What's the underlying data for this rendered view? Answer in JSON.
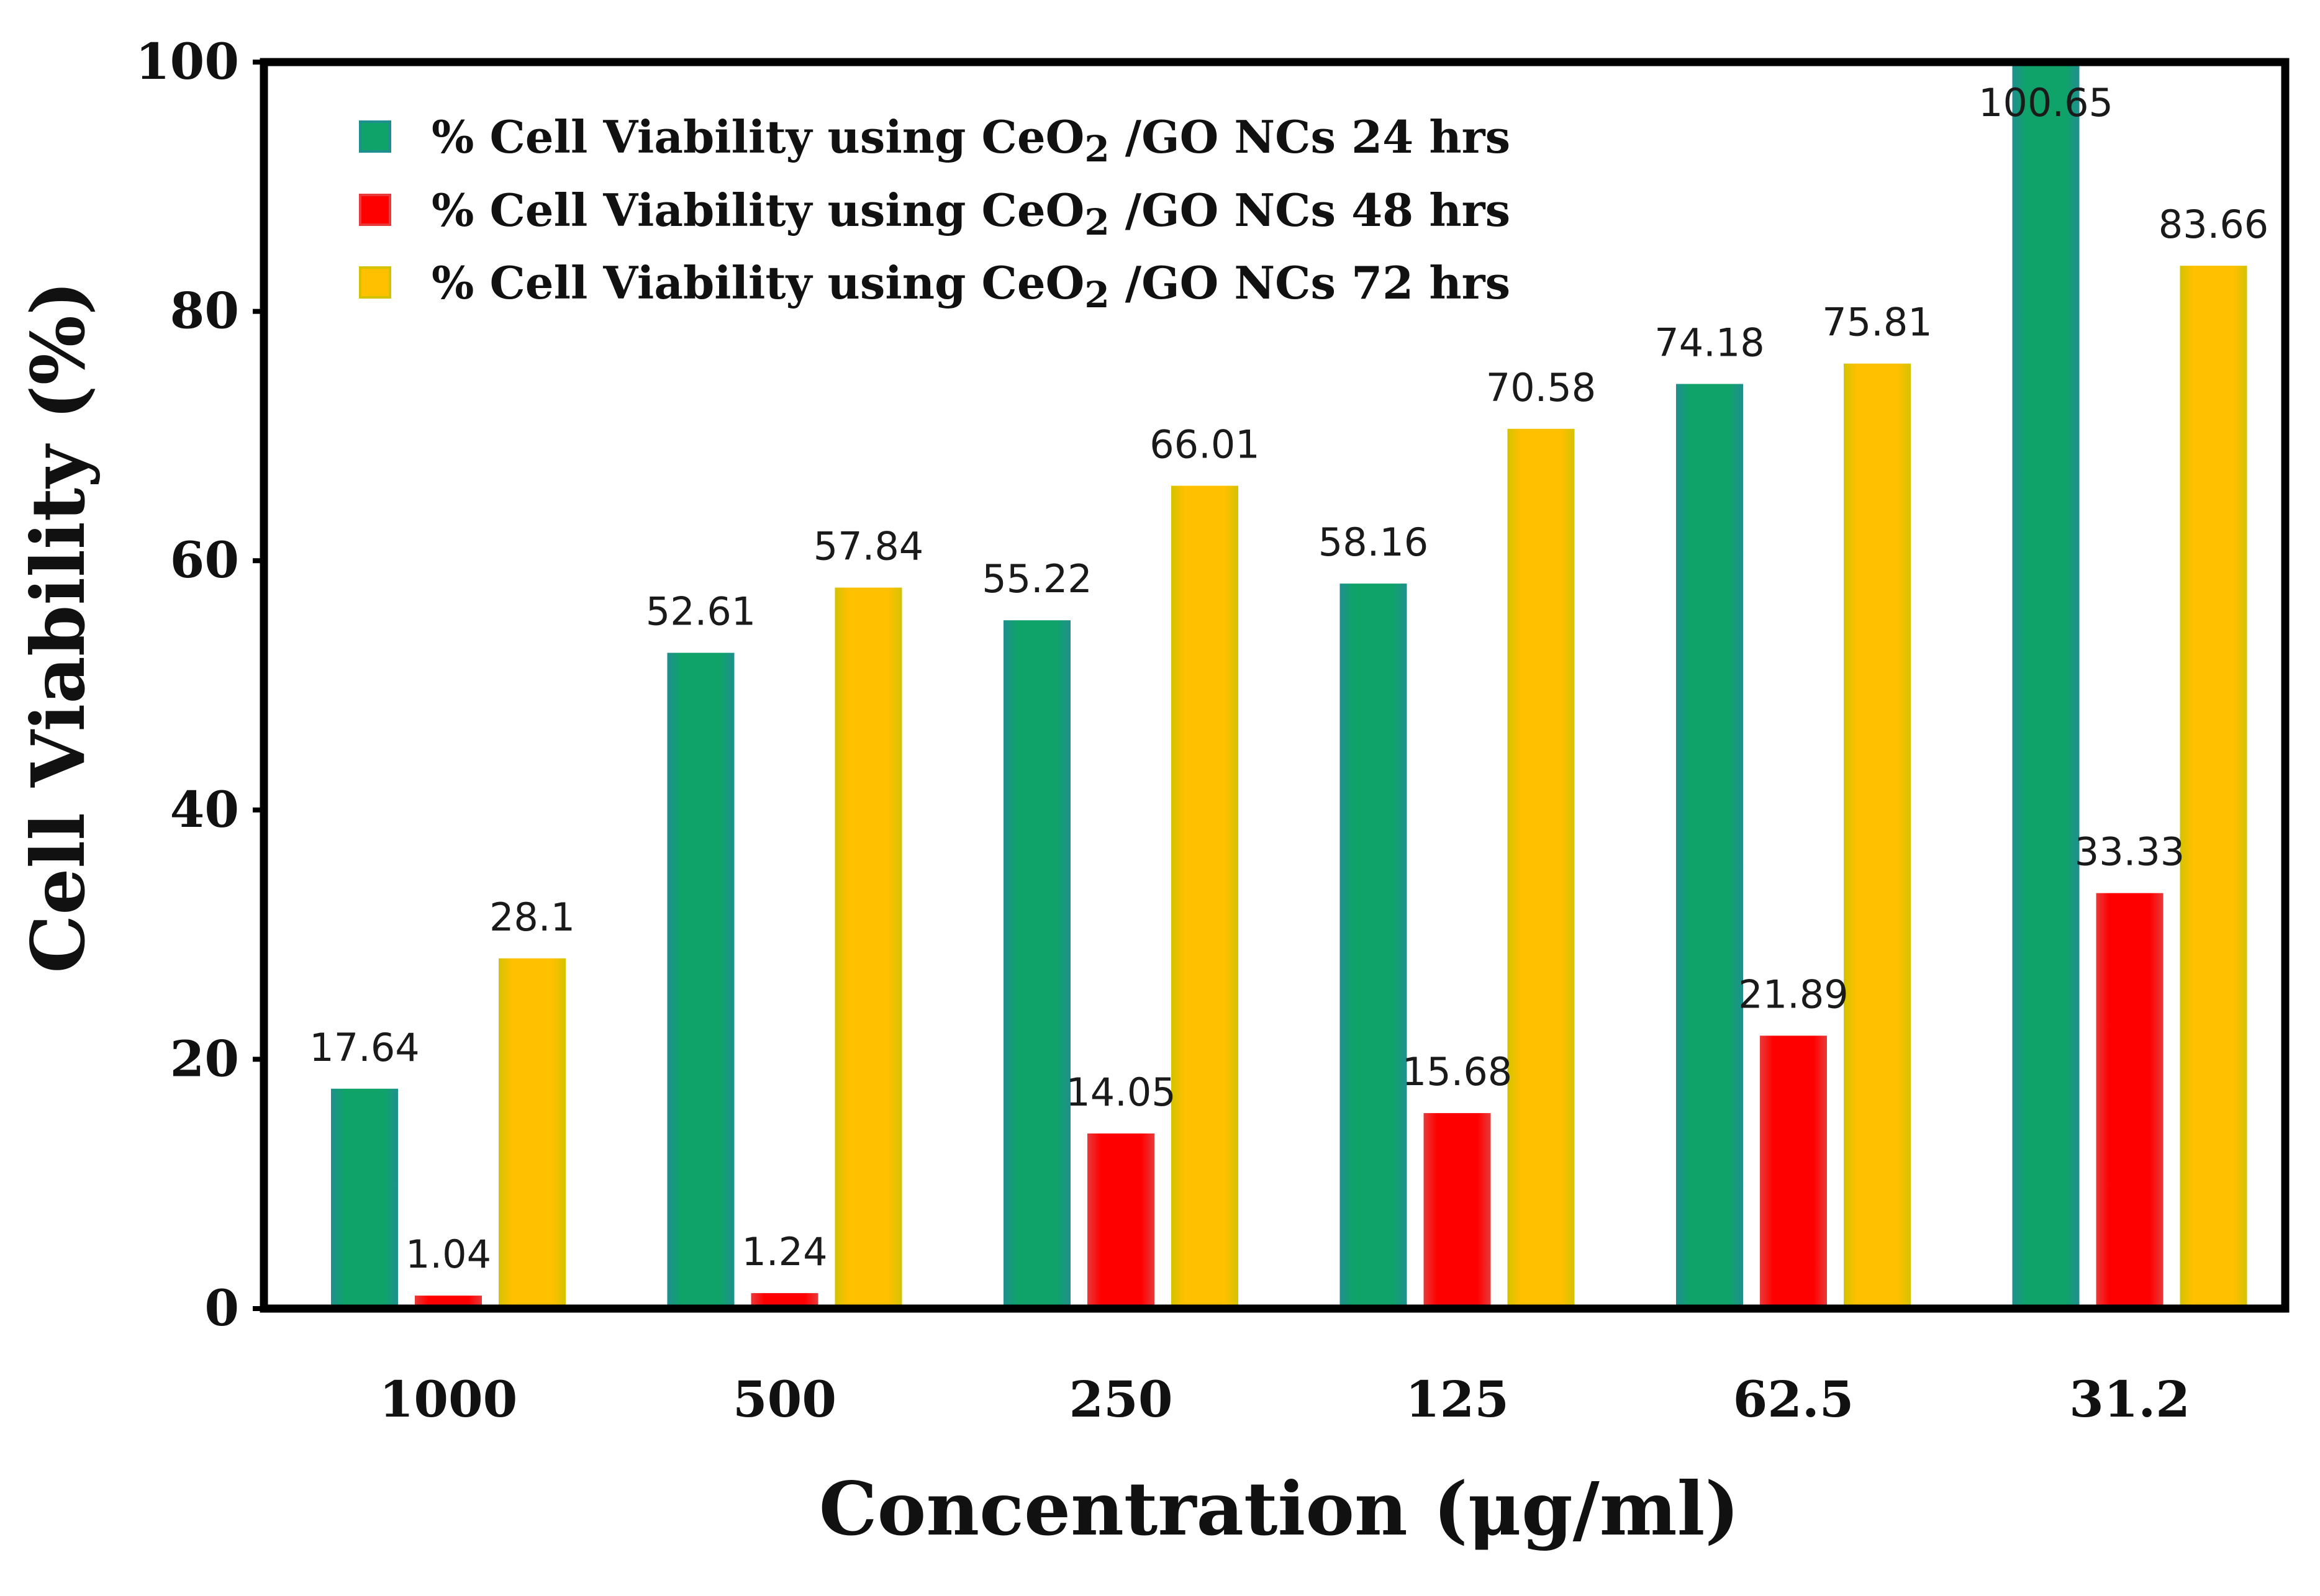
{
  "chart_data": {
    "type": "bar",
    "title": "",
    "xlabel": "Concentration (μg/ml)",
    "ylabel": "Cell Viability (%)",
    "ylim": [
      0,
      100
    ],
    "yticks": [
      "0",
      "20",
      "40",
      "60",
      "80",
      "100"
    ],
    "grid": false,
    "legend_position": "top-left",
    "categories": [
      "1000",
      "500",
      "250",
      "125",
      "62.5",
      "31.2"
    ],
    "series": [
      {
        "name": "% Cell Viability using CeO2 /GO NCs 24 hrs",
        "legend_prefix": "% Cell Viability using CeO",
        "legend_sub": "2",
        "legend_suffix": " /GO NCs 24 hrs",
        "color": "#0fa36a",
        "edge_color": "#1f8f8f",
        "values": [
          17.64,
          52.61,
          55.22,
          58.16,
          74.18,
          100.65
        ],
        "labels": [
          "17.64",
          "52.61",
          "55.22",
          "58.16",
          "74.18",
          "100.65"
        ]
      },
      {
        "name": "% Cell Viability using CeO2 /GO NCs 48 hrs",
        "legend_prefix": "% Cell Viability using CeO",
        "legend_sub": "2",
        "legend_suffix": " /GO NCs 48 hrs",
        "color": "#ff0000",
        "edge_color": "#e83a3a",
        "values": [
          1.04,
          1.24,
          14.05,
          15.68,
          21.89,
          33.33
        ],
        "labels": [
          "1.04",
          "1.24",
          "14.05",
          "15.68",
          "21.89",
          "33.33"
        ]
      },
      {
        "name": "% Cell Viability using CeO2 /GO NCs 72 hrs",
        "legend_prefix": "% Cell Viability using CeO",
        "legend_sub": "2",
        "legend_suffix": " /GO NCs 72 hrs",
        "color": "#ffc000",
        "edge_color": "#d4c200",
        "values": [
          28.1,
          57.84,
          66.01,
          70.58,
          75.81,
          83.66
        ],
        "labels": [
          "28.1",
          "57.84",
          "66.01",
          "70.58",
          "75.81",
          "83.66"
        ]
      }
    ]
  }
}
